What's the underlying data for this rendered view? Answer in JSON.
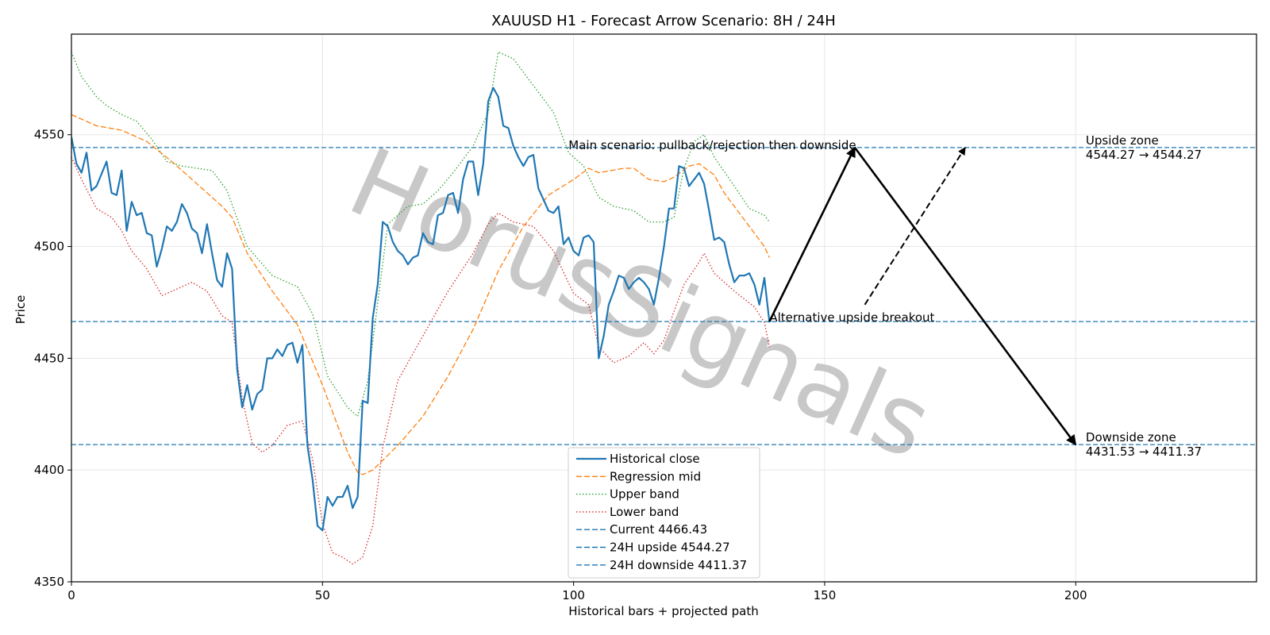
{
  "chart_data": {
    "type": "line",
    "title": "XAUUSD H1 - Forecast Arrow Scenario: 8H / 24H",
    "xlabel": "Historical bars + projected path",
    "ylabel": "Price",
    "xlim": [
      0,
      236
    ],
    "ylim": [
      4350,
      4595
    ],
    "x_ticks": [
      0,
      50,
      100,
      150,
      200
    ],
    "y_ticks": [
      4350,
      4400,
      4450,
      4500,
      4550
    ],
    "grid": true,
    "legend_position": "bottom-center",
    "watermark": "HorusSignals",
    "colors": {
      "close": "#1f77b4",
      "mid": "#ff7f0e",
      "upper": "#2ca02c",
      "lower": "#d62728",
      "levels": "#1f77b4",
      "arrows": "#000000"
    },
    "series": [
      {
        "name": "Historical close",
        "style": "solid",
        "color": "#1f77b4",
        "anchors": [
          [
            0,
            4549
          ],
          [
            1,
            4537
          ],
          [
            2,
            4533
          ],
          [
            3,
            4542
          ],
          [
            4,
            4525
          ],
          [
            5,
            4527
          ],
          [
            7,
            4538
          ],
          [
            8,
            4524
          ],
          [
            9,
            4523
          ],
          [
            10,
            4534
          ],
          [
            11,
            4507
          ],
          [
            12,
            4520
          ],
          [
            13,
            4514
          ],
          [
            14,
            4515
          ],
          [
            15,
            4506
          ],
          [
            16,
            4505
          ],
          [
            17,
            4491
          ],
          [
            18,
            4499
          ],
          [
            19,
            4509
          ],
          [
            20,
            4507
          ],
          [
            21,
            4511
          ],
          [
            22,
            4519
          ],
          [
            23,
            4515
          ],
          [
            24,
            4508
          ],
          [
            25,
            4506
          ],
          [
            26,
            4497
          ],
          [
            27,
            4510
          ],
          [
            28,
            4497
          ],
          [
            29,
            4485
          ],
          [
            30,
            4482
          ],
          [
            31,
            4497
          ],
          [
            32,
            4490
          ],
          [
            33,
            4445
          ],
          [
            34,
            4428
          ],
          [
            35,
            4438
          ],
          [
            36,
            4427
          ],
          [
            37,
            4434
          ],
          [
            38,
            4436
          ],
          [
            39,
            4450
          ],
          [
            40,
            4450
          ],
          [
            41,
            4454
          ],
          [
            42,
            4451
          ],
          [
            43,
            4456
          ],
          [
            44,
            4457
          ],
          [
            45,
            4448
          ],
          [
            46,
            4456
          ],
          [
            47,
            4411
          ],
          [
            48,
            4396
          ],
          [
            49,
            4375
          ],
          [
            50,
            4373
          ],
          [
            51,
            4388
          ],
          [
            52,
            4384
          ],
          [
            53,
            4388
          ],
          [
            54,
            4388
          ],
          [
            55,
            4393
          ],
          [
            56,
            4383
          ],
          [
            57,
            4388
          ],
          [
            58,
            4431
          ],
          [
            59,
            4430
          ],
          [
            60,
            4468
          ],
          [
            61,
            4483
          ],
          [
            62,
            4511
          ],
          [
            63,
            4509
          ],
          [
            64,
            4502
          ],
          [
            65,
            4498
          ],
          [
            66,
            4496
          ],
          [
            67,
            4492
          ],
          [
            68,
            4495
          ],
          [
            69,
            4496
          ],
          [
            70,
            4506
          ],
          [
            71,
            4502
          ],
          [
            72,
            4501
          ],
          [
            73,
            4514
          ],
          [
            74,
            4515
          ],
          [
            75,
            4523
          ],
          [
            76,
            4524
          ],
          [
            77,
            4515
          ],
          [
            78,
            4530
          ],
          [
            79,
            4538
          ],
          [
            80,
            4538
          ],
          [
            81,
            4523
          ],
          [
            82,
            4537
          ],
          [
            83,
            4565
          ],
          [
            84,
            4571
          ],
          [
            85,
            4567
          ],
          [
            86,
            4554
          ],
          [
            87,
            4553
          ],
          [
            88,
            4545
          ],
          [
            89,
            4540
          ],
          [
            90,
            4536
          ],
          [
            91,
            4540
          ],
          [
            92,
            4541
          ],
          [
            93,
            4526
          ],
          [
            94,
            4521
          ],
          [
            95,
            4516
          ],
          [
            96,
            4515
          ],
          [
            97,
            4518
          ],
          [
            98,
            4501
          ],
          [
            99,
            4504
          ],
          [
            100,
            4498
          ],
          [
            101,
            4496
          ],
          [
            102,
            4504
          ],
          [
            103,
            4505
          ],
          [
            104,
            4502
          ],
          [
            105,
            4450
          ],
          [
            106,
            4460
          ],
          [
            107,
            4474
          ],
          [
            108,
            4480
          ],
          [
            109,
            4487
          ],
          [
            110,
            4486
          ],
          [
            111,
            4481
          ],
          [
            112,
            4484
          ],
          [
            113,
            4486
          ],
          [
            114,
            4484
          ],
          [
            115,
            4481
          ],
          [
            116,
            4474
          ],
          [
            117,
            4486
          ],
          [
            118,
            4500
          ],
          [
            119,
            4517
          ],
          [
            120,
            4517
          ],
          [
            121,
            4536
          ],
          [
            122,
            4535
          ],
          [
            123,
            4527
          ],
          [
            124,
            4530
          ],
          [
            125,
            4533
          ],
          [
            126,
            4528
          ],
          [
            127,
            4516
          ],
          [
            128,
            4503
          ],
          [
            129,
            4504
          ],
          [
            130,
            4502
          ],
          [
            131,
            4492
          ],
          [
            132,
            4484
          ],
          [
            133,
            4487
          ],
          [
            134,
            4487
          ],
          [
            135,
            4488
          ],
          [
            136,
            4483
          ],
          [
            137,
            4474
          ],
          [
            138,
            4486
          ],
          [
            139,
            4466
          ]
        ]
      },
      {
        "name": "Regression mid",
        "style": "dashed",
        "color": "#ff7f0e",
        "anchors": [
          [
            0,
            4559
          ],
          [
            5,
            4554
          ],
          [
            10,
            4552
          ],
          [
            15,
            4547
          ],
          [
            20,
            4538
          ],
          [
            25,
            4528
          ],
          [
            30,
            4518
          ],
          [
            32,
            4513
          ],
          [
            35,
            4497
          ],
          [
            40,
            4480
          ],
          [
            45,
            4465
          ],
          [
            50,
            4438
          ],
          [
            55,
            4408
          ],
          [
            57,
            4399
          ],
          [
            58,
            4398
          ],
          [
            60,
            4400
          ],
          [
            65,
            4411
          ],
          [
            70,
            4424
          ],
          [
            75,
            4442
          ],
          [
            80,
            4463
          ],
          [
            85,
            4489
          ],
          [
            90,
            4509
          ],
          [
            95,
            4523
          ],
          [
            100,
            4530
          ],
          [
            103,
            4535
          ],
          [
            105,
            4533
          ],
          [
            110,
            4535
          ],
          [
            112,
            4535
          ],
          [
            115,
            4530
          ],
          [
            118,
            4529
          ],
          [
            120,
            4531
          ],
          [
            123,
            4536
          ],
          [
            125,
            4537
          ],
          [
            128,
            4532
          ],
          [
            130,
            4524
          ],
          [
            135,
            4509
          ],
          [
            138,
            4500
          ],
          [
            139,
            4495
          ]
        ]
      },
      {
        "name": "Upper band",
        "style": "dotted",
        "color": "#2ca02c",
        "anchors": [
          [
            0,
            4587
          ],
          [
            2,
            4576
          ],
          [
            5,
            4567
          ],
          [
            7,
            4563
          ],
          [
            10,
            4559
          ],
          [
            13,
            4556
          ],
          [
            16,
            4548
          ],
          [
            19,
            4538
          ],
          [
            22,
            4536
          ],
          [
            25,
            4535
          ],
          [
            28,
            4534
          ],
          [
            31,
            4525
          ],
          [
            35,
            4500
          ],
          [
            40,
            4487
          ],
          [
            45,
            4482
          ],
          [
            48,
            4470
          ],
          [
            51,
            4442
          ],
          [
            55,
            4428
          ],
          [
            57,
            4424
          ],
          [
            59,
            4440
          ],
          [
            63,
            4510
          ],
          [
            67,
            4518
          ],
          [
            70,
            4519
          ],
          [
            73,
            4525
          ],
          [
            76,
            4533
          ],
          [
            80,
            4545
          ],
          [
            83,
            4560
          ],
          [
            85,
            4587
          ],
          [
            88,
            4584
          ],
          [
            92,
            4572
          ],
          [
            96,
            4560
          ],
          [
            99,
            4542
          ],
          [
            102,
            4536
          ],
          [
            105,
            4522
          ],
          [
            108,
            4518
          ],
          [
            112,
            4516
          ],
          [
            115,
            4511
          ],
          [
            118,
            4511
          ],
          [
            120,
            4513
          ],
          [
            122,
            4535
          ],
          [
            124,
            4547
          ],
          [
            126,
            4550
          ],
          [
            128,
            4540
          ],
          [
            132,
            4527
          ],
          [
            135,
            4517
          ],
          [
            138,
            4514
          ],
          [
            139,
            4511
          ]
        ]
      },
      {
        "name": "Lower band",
        "style": "dotted",
        "color": "#d62728",
        "anchors": [
          [
            0,
            4540
          ],
          [
            2,
            4530
          ],
          [
            5,
            4517
          ],
          [
            8,
            4513
          ],
          [
            10,
            4507
          ],
          [
            12,
            4498
          ],
          [
            15,
            4490
          ],
          [
            18,
            4478
          ],
          [
            21,
            4481
          ],
          [
            24,
            4484
          ],
          [
            27,
            4480
          ],
          [
            30,
            4469
          ],
          [
            32,
            4466
          ],
          [
            34,
            4432
          ],
          [
            36,
            4412
          ],
          [
            38,
            4408
          ],
          [
            40,
            4411
          ],
          [
            43,
            4420
          ],
          [
            46,
            4422
          ],
          [
            48,
            4405
          ],
          [
            50,
            4376
          ],
          [
            52,
            4363
          ],
          [
            54,
            4361
          ],
          [
            56,
            4358
          ],
          [
            58,
            4361
          ],
          [
            60,
            4375
          ],
          [
            62,
            4410
          ],
          [
            65,
            4440
          ],
          [
            70,
            4460
          ],
          [
            75,
            4480
          ],
          [
            80,
            4497
          ],
          [
            83,
            4510
          ],
          [
            85,
            4515
          ],
          [
            88,
            4511
          ],
          [
            92,
            4509
          ],
          [
            96,
            4498
          ],
          [
            100,
            4479
          ],
          [
            103,
            4474
          ],
          [
            105,
            4455
          ],
          [
            108,
            4448
          ],
          [
            111,
            4451
          ],
          [
            114,
            4457
          ],
          [
            116,
            4452
          ],
          [
            118,
            4458
          ],
          [
            120,
            4471
          ],
          [
            122,
            4483
          ],
          [
            125,
            4493
          ],
          [
            126,
            4497
          ],
          [
            128,
            4488
          ],
          [
            132,
            4480
          ],
          [
            136,
            4473
          ],
          [
            138,
            4466
          ],
          [
            139,
            4455
          ]
        ]
      }
    ],
    "levels": [
      {
        "name": "Current 4466.43",
        "value": 4466.43
      },
      {
        "name": "24H upside 4544.27",
        "value": 4544.27
      },
      {
        "name": "24H downside 4411.37",
        "value": 4411.37
      }
    ],
    "arrows": [
      {
        "from": [
          139,
          4466.43
        ],
        "to": [
          156,
          4544.27
        ],
        "style": "solid"
      },
      {
        "from": [
          156,
          4544.27
        ],
        "to": [
          200,
          4411.37
        ],
        "style": "solid"
      },
      {
        "from": [
          158,
          4474
        ],
        "to": [
          178,
          4544.27
        ],
        "style": "dashed"
      }
    ],
    "annotations": [
      {
        "text": "Main scenario: pullback/rejection then downside",
        "x": 99,
        "y": 4544.27
      },
      {
        "text": "Alternative upside breakout",
        "x": 139,
        "y": 4466.43
      },
      {
        "text": "Upside zone",
        "x": 202,
        "y": 4544.27
      },
      {
        "text": "4544.27 → 4544.27",
        "x": 202,
        "y": 4544.27
      },
      {
        "text": "Downside zone",
        "x": 202,
        "y": 4411.37
      },
      {
        "text": "4431.53 → 4411.37",
        "x": 202,
        "y": 4411.37
      }
    ]
  }
}
